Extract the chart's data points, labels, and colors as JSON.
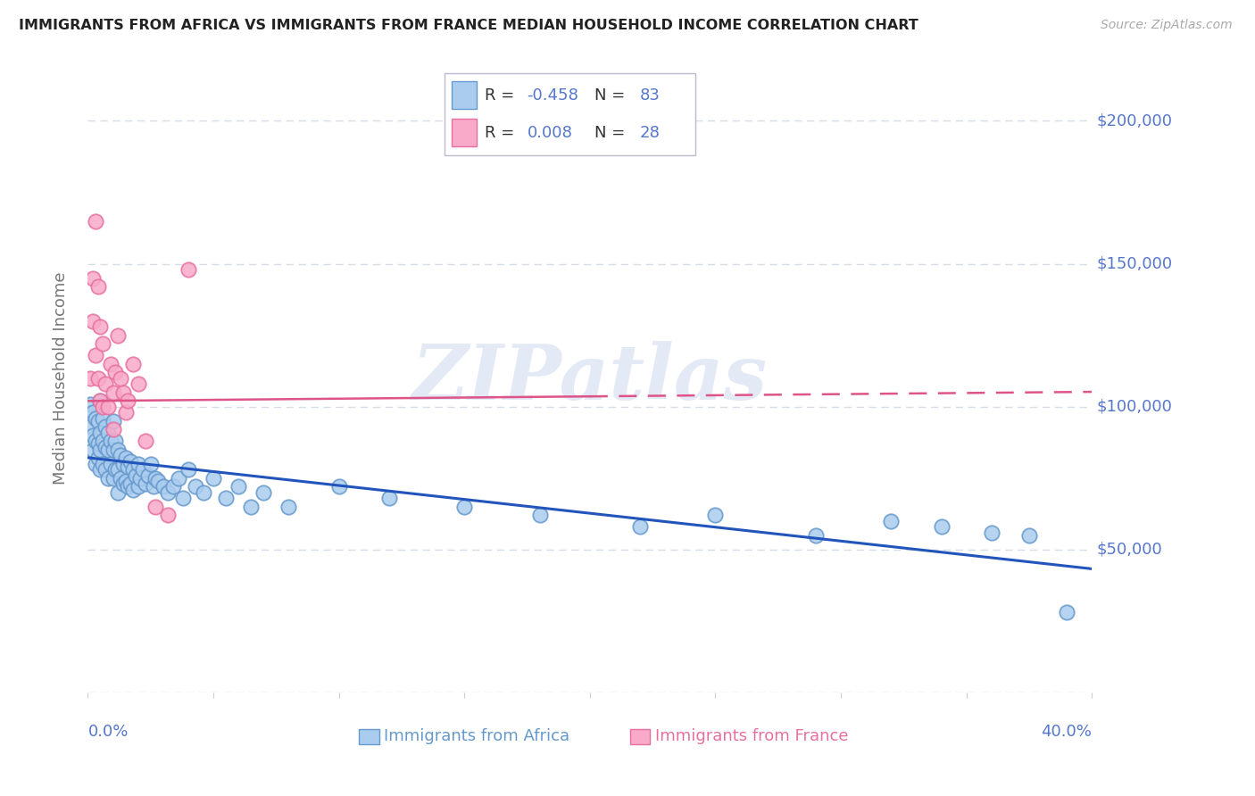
{
  "title": "IMMIGRANTS FROM AFRICA VS IMMIGRANTS FROM FRANCE MEDIAN HOUSEHOLD INCOME CORRELATION CHART",
  "source": "Source: ZipAtlas.com",
  "ylabel": "Median Household Income",
  "xlim": [
    0.0,
    0.4
  ],
  "ylim": [
    0,
    220000
  ],
  "yticks": [
    0,
    50000,
    100000,
    150000,
    200000
  ],
  "ytick_labels": [
    "",
    "$50,000",
    "$100,000",
    "$150,000",
    "$200,000"
  ],
  "watermark": "ZIPatlas",
  "africa_color": "#aaccee",
  "africa_edge": "#6699cc",
  "france_color": "#f8aac8",
  "france_edge": "#e870a0",
  "trend_africa_color": "#2255bb",
  "trend_france_color": "#dd5588",
  "grid_color": "#d5dde8",
  "label_color": "#5577cc",
  "R_africa": -0.458,
  "N_africa": 83,
  "R_france": 0.008,
  "N_france": 28,
  "africa_x": [
    0.001,
    0.001,
    0.002,
    0.002,
    0.002,
    0.003,
    0.003,
    0.003,
    0.004,
    0.004,
    0.004,
    0.005,
    0.005,
    0.005,
    0.005,
    0.006,
    0.006,
    0.006,
    0.007,
    0.007,
    0.007,
    0.008,
    0.008,
    0.008,
    0.009,
    0.009,
    0.01,
    0.01,
    0.01,
    0.011,
    0.011,
    0.012,
    0.012,
    0.012,
    0.013,
    0.013,
    0.014,
    0.014,
    0.015,
    0.015,
    0.016,
    0.016,
    0.017,
    0.017,
    0.018,
    0.018,
    0.019,
    0.02,
    0.02,
    0.021,
    0.022,
    0.023,
    0.024,
    0.025,
    0.026,
    0.027,
    0.028,
    0.03,
    0.032,
    0.034,
    0.036,
    0.038,
    0.04,
    0.043,
    0.046,
    0.05,
    0.055,
    0.06,
    0.065,
    0.07,
    0.08,
    0.1,
    0.12,
    0.15,
    0.18,
    0.22,
    0.25,
    0.29,
    0.32,
    0.34,
    0.36,
    0.375,
    0.39
  ],
  "africa_y": [
    93000,
    101000,
    98000,
    90000,
    85000,
    96000,
    88000,
    80000,
    95000,
    87000,
    82000,
    102000,
    91000,
    85000,
    78000,
    96000,
    88000,
    80000,
    93000,
    86000,
    78000,
    91000,
    85000,
    75000,
    88000,
    80000,
    95000,
    85000,
    75000,
    88000,
    78000,
    85000,
    78000,
    70000,
    83000,
    75000,
    80000,
    73000,
    82000,
    74000,
    79000,
    72000,
    81000,
    73000,
    78000,
    71000,
    76000,
    80000,
    72000,
    75000,
    78000,
    73000,
    76000,
    80000,
    72000,
    75000,
    74000,
    72000,
    70000,
    72000,
    75000,
    68000,
    78000,
    72000,
    70000,
    75000,
    68000,
    72000,
    65000,
    70000,
    65000,
    72000,
    68000,
    65000,
    62000,
    58000,
    62000,
    55000,
    60000,
    58000,
    56000,
    55000,
    28000
  ],
  "france_x": [
    0.001,
    0.002,
    0.002,
    0.003,
    0.003,
    0.004,
    0.004,
    0.005,
    0.005,
    0.006,
    0.006,
    0.007,
    0.008,
    0.009,
    0.01,
    0.01,
    0.011,
    0.012,
    0.013,
    0.014,
    0.015,
    0.016,
    0.018,
    0.02,
    0.023,
    0.027,
    0.032,
    0.04
  ],
  "france_y": [
    110000,
    145000,
    130000,
    165000,
    118000,
    142000,
    110000,
    128000,
    102000,
    122000,
    100000,
    108000,
    100000,
    115000,
    105000,
    92000,
    112000,
    125000,
    110000,
    105000,
    98000,
    102000,
    115000,
    108000,
    88000,
    65000,
    62000,
    148000
  ]
}
